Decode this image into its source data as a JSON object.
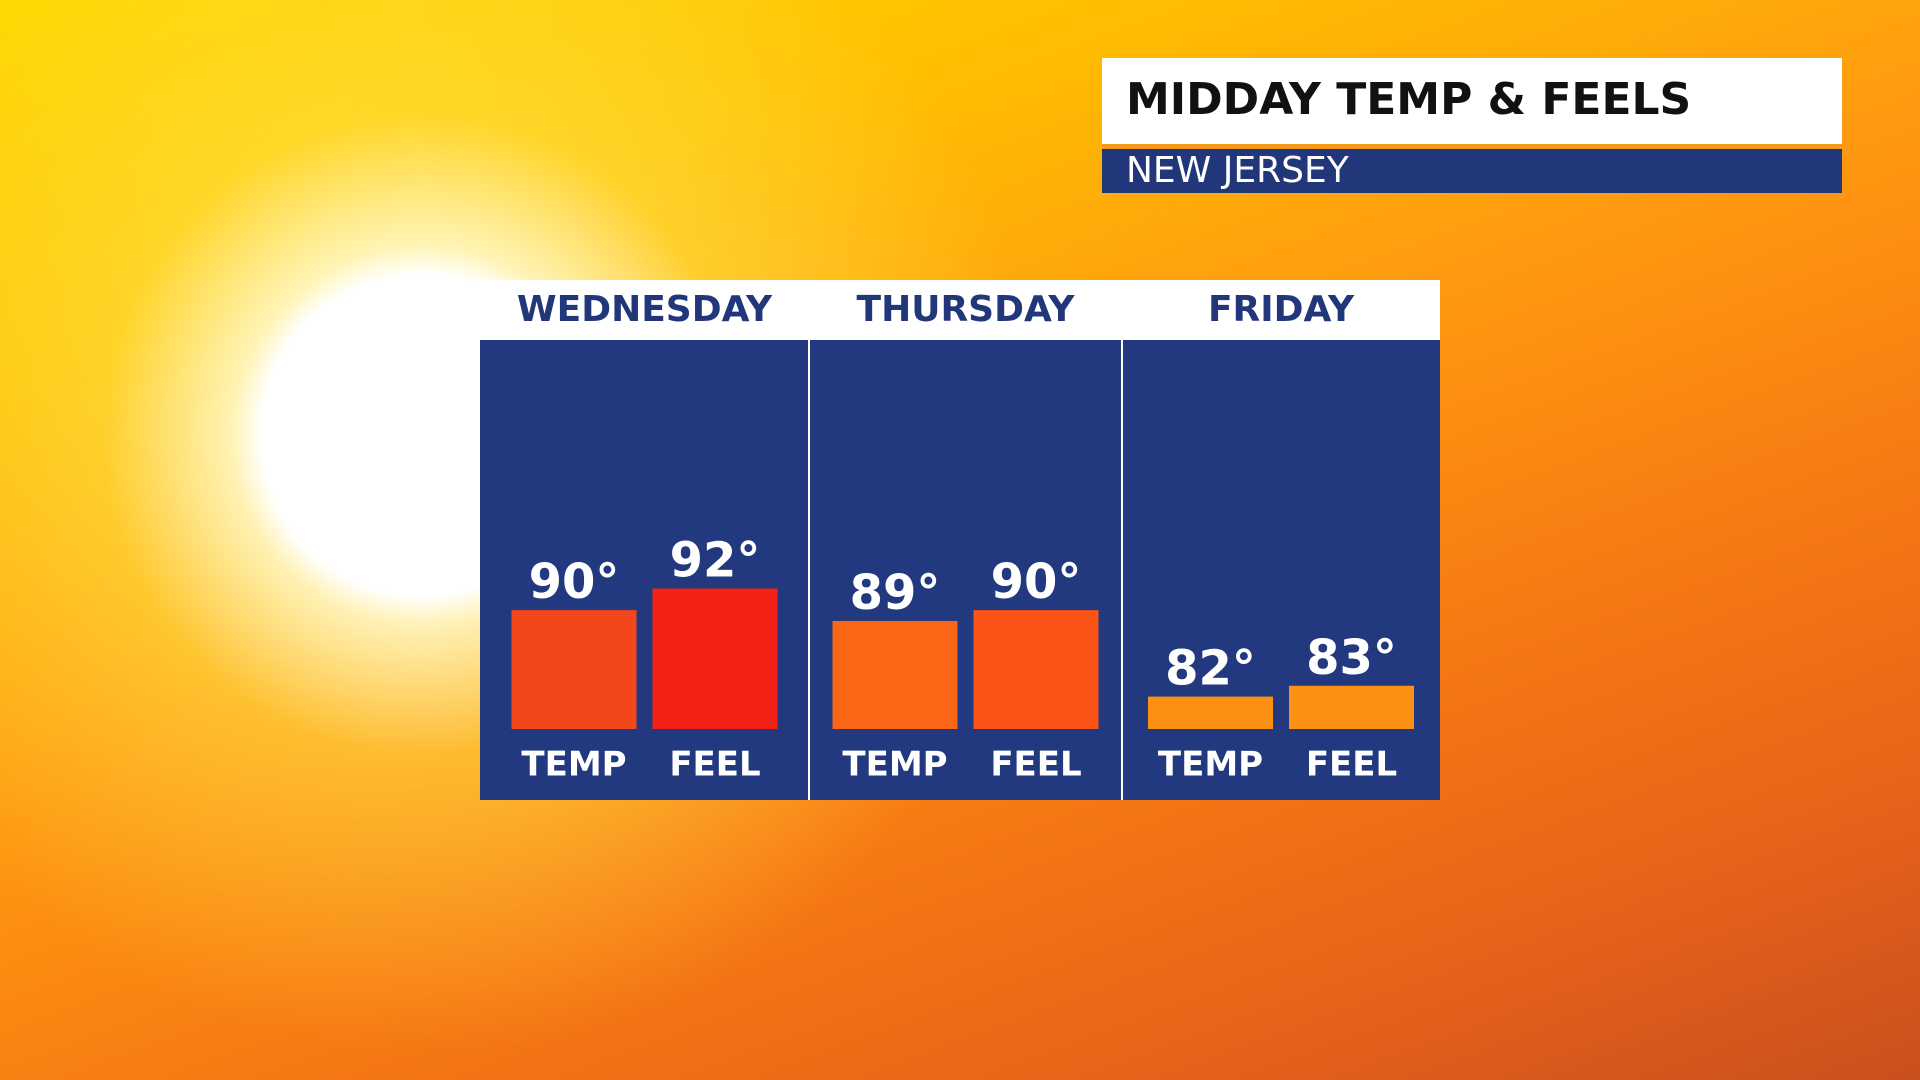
{
  "chart_data": {
    "type": "bar",
    "title": "MIDDAY TEMP & FEELS",
    "subtitle": "NEW JERSEY",
    "categories": [
      "WEDNESDAY",
      "THURSDAY",
      "FRIDAY"
    ],
    "series": [
      {
        "name": "TEMP",
        "colors": [
          "#f2461b",
          "#fb6616",
          "#fb9012"
        ],
        "values": [
          90,
          89,
          82
        ],
        "value_labels": [
          "90°",
          "89°",
          "82°"
        ]
      },
      {
        "name": "FEEL",
        "colors": [
          "#f42214",
          "#fb5416",
          "#fb9012"
        ],
        "values": [
          92,
          90,
          83
        ],
        "value_labels": [
          "92°",
          "90°",
          "83°"
        ]
      }
    ],
    "ylim": [
      79,
      115
    ]
  }
}
